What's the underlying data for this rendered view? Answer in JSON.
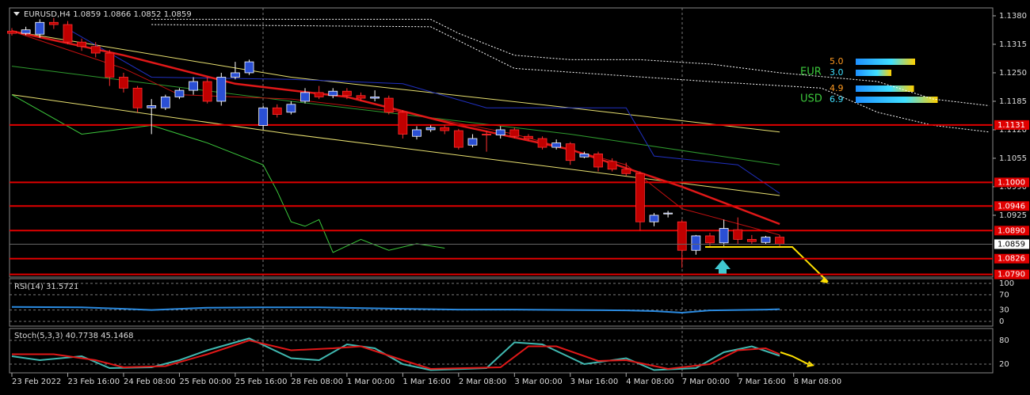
{
  "chart_data": {
    "type": "candlestick",
    "title": "EURUSD,H4  1.0859 1.0866 1.0852 1.0859",
    "open": [
      1.1345,
      1.134,
      1.1338,
      1.1365,
      1.136,
      1.132,
      1.131,
      1.1295,
      1.124,
      1.1215,
      1.117,
      1.117,
      1.1195,
      1.121,
      1.123,
      1.1185,
      1.124,
      1.125,
      1.113,
      1.117,
      1.116,
      1.1185,
      1.1205,
      1.1198,
      1.1208,
      1.1198,
      1.1192,
      1.1192,
      1.116,
      1.1105,
      1.112,
      1.1125,
      1.1118,
      1.1085,
      1.111,
      1.1108,
      1.112,
      1.1105,
      1.11,
      1.108,
      1.1088,
      1.1058,
      1.1065,
      1.1048,
      1.103,
      1.102,
      1.091,
      1.0928,
      1.091,
      1.0845,
      1.0878,
      1.0862,
      1.0892,
      1.087,
      1.0863,
      1.0875
    ],
    "high": [
      1.1352,
      1.1355,
      1.1372,
      1.1375,
      1.1368,
      1.1328,
      1.132,
      1.1302,
      1.125,
      1.122,
      1.119,
      1.12,
      1.1215,
      1.124,
      1.124,
      1.125,
      1.1275,
      1.128,
      1.1175,
      1.1178,
      1.1185,
      1.1215,
      1.122,
      1.1215,
      1.1215,
      1.1205,
      1.121,
      1.1198,
      1.1165,
      1.1128,
      1.113,
      1.113,
      1.1122,
      1.111,
      1.1118,
      1.1128,
      1.1125,
      1.111,
      1.1105,
      1.1098,
      1.1092,
      1.107,
      1.107,
      1.1055,
      1.1045,
      1.1025,
      1.093,
      1.0935,
      1.0915,
      1.088,
      1.0885,
      1.0915,
      1.092,
      1.088,
      1.0878,
      1.088
    ],
    "low": [
      1.1335,
      1.1336,
      1.133,
      1.135,
      1.1315,
      1.13,
      1.1285,
      1.122,
      1.1205,
      1.116,
      1.111,
      1.1165,
      1.119,
      1.12,
      1.118,
      1.1175,
      1.1235,
      1.1245,
      1.112,
      1.1148,
      1.1155,
      1.118,
      1.119,
      1.1192,
      1.119,
      1.1185,
      1.1185,
      1.1155,
      1.11,
      1.1098,
      1.1115,
      1.111,
      1.1075,
      1.108,
      1.107,
      1.11,
      1.11,
      1.1095,
      1.1075,
      1.1075,
      1.104,
      1.1055,
      1.1025,
      1.1025,
      1.1015,
      1.089,
      1.09,
      1.092,
      1.0805,
      1.0835,
      1.0855,
      1.0855,
      1.086,
      1.0858,
      1.0858,
      1.0855
    ],
    "close": [
      1.134,
      1.1348,
      1.1365,
      1.136,
      1.132,
      1.131,
      1.1295,
      1.124,
      1.1215,
      1.117,
      1.1175,
      1.1195,
      1.121,
      1.123,
      1.1185,
      1.124,
      1.125,
      1.1275,
      1.117,
      1.1155,
      1.1178,
      1.1205,
      1.1195,
      1.1208,
      1.1198,
      1.1192,
      1.1195,
      1.116,
      1.111,
      1.112,
      1.1125,
      1.1118,
      1.108,
      1.11,
      1.1108,
      1.112,
      1.1105,
      1.11,
      1.108,
      1.109,
      1.105,
      1.1065,
      1.1035,
      1.103,
      1.102,
      1.091,
      1.0925,
      1.093,
      1.0845,
      1.0878,
      1.0862,
      1.0895,
      1.087,
      1.0865,
      1.0875,
      1.0859
    ],
    "up_color": "#2a4fd4",
    "down_color": "#c00000",
    "ylim": [
      1.0784,
      1.1398
    ],
    "yticks": [
      {
        "value": 1.138,
        "label": "1.1380"
      },
      {
        "value": 1.1315,
        "label": "1.1315"
      },
      {
        "value": 1.125,
        "label": "1.1250"
      },
      {
        "value": 1.1185,
        "label": "1.1185"
      },
      {
        "value": 1.112,
        "label": "1.1120"
      },
      {
        "value": 1.1055,
        "label": "1.1055"
      },
      {
        "value": 1.099,
        "label": "1.0990"
      },
      {
        "value": 1.0925,
        "label": "1.0925"
      }
    ],
    "levels": [
      1.1131,
      {
        "value": 1.1,
        "label": "1.1000"
      },
      1.0946,
      {
        "value": 1.089,
        "label": "1.0890"
      },
      1.0826,
      {
        "value": 1.079,
        "label": "1.0790"
      }
    ],
    "level_color": "#e00000",
    "last_price": 1.0859,
    "x_labels": {
      "at": [
        0,
        4,
        8,
        12,
        16,
        20,
        24,
        28,
        32,
        36,
        40,
        44,
        48,
        52,
        56
      ],
      "labels": [
        "23 Feb 2022",
        "23 Feb 16:00",
        "24 Feb 08:00",
        "25 Feb 00:00",
        "25 Feb 16:00",
        "28 Feb 08:00",
        "1 Mar 00:00",
        "1 Mar 16:00",
        "2 Mar 08:00",
        "3 Mar 00:00",
        "3 Mar 16:00",
        "4 Mar 08:00",
        "7 Mar 00:00",
        "7 Mar 16:00",
        "8 Mar 08:00"
      ]
    },
    "overlays": [
      {
        "color": "#ffffff",
        "dash": true,
        "x": [
          10,
          20,
          30,
          32,
          36,
          40,
          45,
          50,
          55,
          62,
          66,
          70
        ],
        "values": [
          1.1372,
          1.1372,
          1.1372,
          1.134,
          1.129,
          1.128,
          1.128,
          1.127,
          1.125,
          1.123,
          1.119,
          1.1175
        ]
      },
      {
        "color": "#ffffff",
        "dash": true,
        "x": [
          10,
          30,
          36,
          50,
          58,
          62,
          66,
          70
        ],
        "values": [
          1.136,
          1.1355,
          1.126,
          1.123,
          1.1215,
          1.116,
          1.113,
          1.1115
        ]
      },
      {
        "color": "#e8e070",
        "x": [
          0,
          20,
          40,
          55
        ],
        "values": [
          1.1345,
          1.124,
          1.117,
          1.1115
        ]
      },
      {
        "color": "#e8e070",
        "x": [
          0,
          20,
          40,
          55
        ],
        "values": [
          1.12,
          1.111,
          1.103,
          1.097
        ]
      },
      {
        "color": "#2e9a2e",
        "x": [
          0,
          20,
          40,
          55
        ],
        "values": [
          1.1265,
          1.1185,
          1.111,
          1.104
        ]
      },
      {
        "color": "#3cc83c",
        "x": [
          0,
          5,
          10,
          14,
          18,
          19,
          20,
          21,
          22,
          23,
          25,
          27,
          29,
          31
        ],
        "values": [
          1.12,
          1.111,
          1.113,
          1.109,
          1.104,
          1.098,
          1.091,
          1.09,
          1.0915,
          1.084,
          1.087,
          1.0845,
          1.086,
          1.085
        ]
      },
      {
        "color": "#2030c0",
        "x": [
          4,
          10,
          20,
          28,
          34,
          44,
          46,
          52,
          55
        ],
        "values": [
          1.135,
          1.124,
          1.1235,
          1.1225,
          1.117,
          1.117,
          1.106,
          1.104,
          1.0975
        ]
      },
      {
        "color": "#c01010",
        "x": [
          0,
          8,
          12,
          20,
          28,
          36,
          44,
          48,
          55
        ],
        "values": [
          1.1345,
          1.126,
          1.12,
          1.119,
          1.116,
          1.111,
          1.104,
          1.094,
          1.088
        ]
      },
      {
        "color": "#e01818",
        "width": 2.5,
        "x": [
          0,
          8,
          16,
          24,
          32,
          40,
          48,
          55
        ],
        "values": [
          1.1345,
          1.129,
          1.1225,
          1.1195,
          1.113,
          1.1075,
          1.099,
          1.0905
        ]
      }
    ],
    "rsi": {
      "title": "RSI(14) 31.5721",
      "color": "#2a8ae0",
      "ylim": [
        0,
        100
      ],
      "yticks": [
        100,
        70,
        30,
        0
      ],
      "x": [
        0,
        5,
        8,
        10,
        14,
        18,
        22,
        28,
        32,
        36,
        40,
        44,
        46,
        48,
        50,
        54,
        55
      ],
      "values": [
        38,
        37,
        33,
        30,
        36,
        37,
        37,
        33,
        31,
        31,
        30,
        29,
        27,
        23,
        29,
        31,
        32
      ]
    },
    "stoch": {
      "title": "Stoch(5,3,3) 40.7738 45.1468",
      "ylim": [
        0,
        100
      ],
      "yticks": [
        80,
        20
      ],
      "series": [
        {
          "color": "#40b8b0",
          "x": [
            0,
            2,
            5,
            7,
            10,
            12,
            14,
            17,
            20,
            22,
            24,
            26,
            28,
            30,
            34,
            36,
            38,
            41,
            44,
            46,
            49,
            51,
            53,
            55
          ],
          "values": [
            40,
            30,
            40,
            10,
            12,
            30,
            55,
            85,
            35,
            30,
            70,
            60,
            20,
            5,
            10,
            75,
            70,
            20,
            35,
            5,
            10,
            50,
            65,
            41
          ]
        },
        {
          "color": "#e01818",
          "x": [
            0,
            3,
            6,
            8,
            11,
            14,
            17,
            20,
            23,
            25,
            28,
            30,
            35,
            37,
            39,
            42,
            44,
            47,
            50,
            52,
            54,
            55
          ],
          "values": [
            45,
            45,
            30,
            12,
            15,
            45,
            80,
            55,
            60,
            65,
            30,
            8,
            12,
            65,
            65,
            28,
            30,
            8,
            20,
            55,
            60,
            45
          ]
        }
      ]
    },
    "strength": [
      {
        "name": "EUR",
        "values": [
          5,
          3
        ],
        "value_labels": [
          "5.0",
          "3.0"
        ]
      },
      {
        "name": "USD",
        "values": [
          4.9,
          6.9
        ],
        "value_labels": [
          "4.9",
          "6.9"
        ]
      }
    ]
  }
}
